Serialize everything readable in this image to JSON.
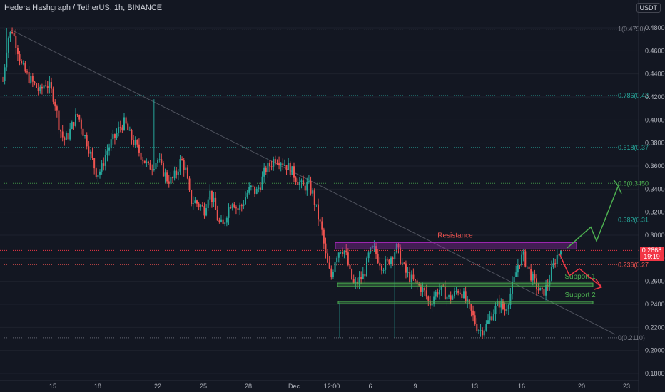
{
  "header": {
    "title": "Hedera Hashgraph / TetherUS, 1h, BINANCE",
    "currency": "USDT"
  },
  "price_tag": {
    "price": "0.2868",
    "countdown": "19:19"
  },
  "colors": {
    "background": "#131722",
    "up": "#26a69a",
    "down": "#ef5350",
    "resistance": "#9c27b0",
    "support": "#4caf50",
    "price_line": "#f23645"
  },
  "chart_data": {
    "type": "candlestick",
    "symbol": "Hedera Hashgraph / TetherUS",
    "interval": "1h",
    "exchange": "BINANCE",
    "ylim": [
      0.17,
      0.495
    ],
    "y_ticks": [
      "0.4800",
      "0.4600",
      "0.4400",
      "0.4200",
      "0.4000",
      "0.3800",
      "0.3600",
      "0.3400",
      "0.3200",
      "0.3000",
      "0.2800",
      "0.2600",
      "0.2400",
      "0.2200",
      "0.2000",
      "0.1800"
    ],
    "x_ticks": [
      "15",
      "18",
      "22",
      "25",
      "28",
      "Dec",
      "12:00",
      "6",
      "9",
      "13",
      "16",
      "20",
      "23"
    ],
    "last_price": 0.2868,
    "fib_levels": [
      {
        "ratio": "1",
        "label": "1(0.4790)",
        "price": 0.479,
        "color": "#787b86"
      },
      {
        "ratio": "0.786",
        "label": "0.786(0.42",
        "price": 0.4213,
        "color": "#26a69a"
      },
      {
        "ratio": "0.618",
        "label": "0.618(0.37",
        "price": 0.3762,
        "color": "#26a69a"
      },
      {
        "ratio": "0.5",
        "label": "0.5(0.3450",
        "price": 0.345,
        "color": "#4caf50"
      },
      {
        "ratio": "0.382",
        "label": "0.382(0.31",
        "price": 0.3133,
        "color": "#26a69a"
      },
      {
        "ratio": "0.236",
        "label": "0.236(0.27",
        "price": 0.2744,
        "color": "#ef5350"
      },
      {
        "ratio": "0",
        "label": "0(0.2110)",
        "price": 0.211,
        "color": "#787b86"
      }
    ],
    "zones": [
      {
        "label": "Resistance",
        "low": 0.288,
        "high": 0.2935,
        "color": "#9c27b0",
        "label_color": "#ef5350"
      },
      {
        "label": "Support 1",
        "low": 0.2555,
        "high": 0.2585,
        "color": "#4caf50",
        "label_color": "#4caf50"
      },
      {
        "label": "Support 2",
        "low": 0.2405,
        "high": 0.2425,
        "color": "#4caf50",
        "label_color": "#4caf50"
      }
    ],
    "path": [
      0.434,
      0.47,
      0.478,
      0.464,
      0.447,
      0.44,
      0.434,
      0.429,
      0.424,
      0.433,
      0.428,
      0.418,
      0.395,
      0.382,
      0.387,
      0.398,
      0.405,
      0.391,
      0.38,
      0.366,
      0.353,
      0.357,
      0.371,
      0.38,
      0.386,
      0.394,
      0.398,
      0.387,
      0.38,
      0.373,
      0.366,
      0.359,
      0.361,
      0.366,
      0.357,
      0.349,
      0.347,
      0.354,
      0.366,
      0.356,
      0.33,
      0.329,
      0.326,
      0.322,
      0.339,
      0.327,
      0.311,
      0.308,
      0.323,
      0.331,
      0.322,
      0.326,
      0.336,
      0.341,
      0.337,
      0.345,
      0.357,
      0.361,
      0.367,
      0.366,
      0.362,
      0.359,
      0.353,
      0.347,
      0.341,
      0.344,
      0.337,
      0.32,
      0.304,
      0.278,
      0.263,
      0.282,
      0.289,
      0.286,
      0.267,
      0.255,
      0.261,
      0.265,
      0.282,
      0.289,
      0.28,
      0.273,
      0.276,
      0.283,
      0.289,
      0.277,
      0.267,
      0.262,
      0.258,
      0.255,
      0.25,
      0.24,
      0.248,
      0.253,
      0.251,
      0.245,
      0.247,
      0.253,
      0.25,
      0.24,
      0.232,
      0.221,
      0.217,
      0.221,
      0.229,
      0.236,
      0.242,
      0.234,
      0.246,
      0.26,
      0.277,
      0.282,
      0.271,
      0.262,
      0.254,
      0.249,
      0.255,
      0.268,
      0.281,
      0.2868
    ]
  },
  "annotations": {
    "resistance_label": "Resistance",
    "support1_label": "Support 1",
    "support2_label": "Support 2"
  }
}
